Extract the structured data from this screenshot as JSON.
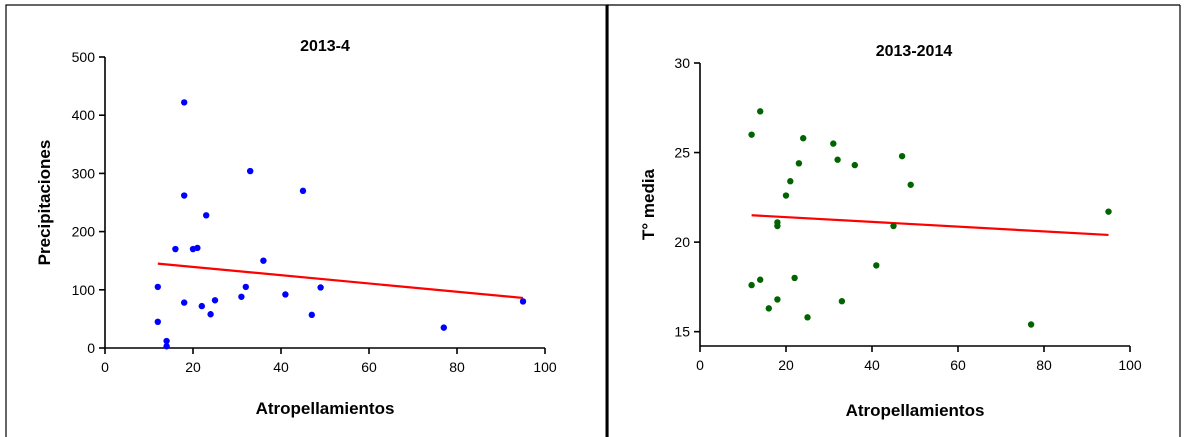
{
  "chart_data": [
    {
      "type": "scatter",
      "title": "2013-4",
      "xlabel": "Atropellamientos",
      "ylabel": "Precipitaciones",
      "xlim": [
        0,
        100
      ],
      "ylim": [
        0,
        500
      ],
      "xticks": [
        "0",
        "20",
        "40",
        "60",
        "80",
        "100"
      ],
      "yticks": [
        "0",
        "100",
        "200",
        "300",
        "400",
        "500"
      ],
      "grid": false,
      "point_color": "#0000ff",
      "line_color": "#ff0000",
      "points": [
        {
          "x": 12,
          "y": 105
        },
        {
          "x": 12,
          "y": 45
        },
        {
          "x": 14,
          "y": 12
        },
        {
          "x": 14,
          "y": 3
        },
        {
          "x": 16,
          "y": 170
        },
        {
          "x": 18,
          "y": 422
        },
        {
          "x": 18,
          "y": 262
        },
        {
          "x": 18,
          "y": 78
        },
        {
          "x": 20,
          "y": 170
        },
        {
          "x": 21,
          "y": 172
        },
        {
          "x": 22,
          "y": 72
        },
        {
          "x": 23,
          "y": 228
        },
        {
          "x": 24,
          "y": 58
        },
        {
          "x": 25,
          "y": 82
        },
        {
          "x": 31,
          "y": 88
        },
        {
          "x": 32,
          "y": 105
        },
        {
          "x": 33,
          "y": 304
        },
        {
          "x": 36,
          "y": 150
        },
        {
          "x": 41,
          "y": 92
        },
        {
          "x": 45,
          "y": 270
        },
        {
          "x": 47,
          "y": 57
        },
        {
          "x": 49,
          "y": 104
        },
        {
          "x": 77,
          "y": 35
        },
        {
          "x": 95,
          "y": 80
        }
      ],
      "trendline": {
        "x": [
          12,
          95
        ],
        "y": [
          145,
          86
        ]
      }
    },
    {
      "type": "scatter",
      "title": "2013-2014",
      "xlabel": "Atropellamientos",
      "ylabel": "T° media",
      "xlim": [
        0,
        100
      ],
      "ylim": [
        14.2,
        30
      ],
      "xticks": [
        "0",
        "20",
        "40",
        "60",
        "80",
        "100"
      ],
      "yticks": [
        "15",
        "20",
        "25",
        "30"
      ],
      "grid": false,
      "point_color": "#006400",
      "line_color": "#ff0000",
      "points": [
        {
          "x": 12,
          "y": 26.0
        },
        {
          "x": 12,
          "y": 17.6
        },
        {
          "x": 14,
          "y": 27.3
        },
        {
          "x": 14,
          "y": 17.9
        },
        {
          "x": 16,
          "y": 16.3
        },
        {
          "x": 18,
          "y": 21.1
        },
        {
          "x": 18,
          "y": 20.9
        },
        {
          "x": 18,
          "y": 16.8
        },
        {
          "x": 20,
          "y": 22.6
        },
        {
          "x": 21,
          "y": 23.4
        },
        {
          "x": 22,
          "y": 18.0
        },
        {
          "x": 23,
          "y": 24.4
        },
        {
          "x": 24,
          "y": 25.8
        },
        {
          "x": 25,
          "y": 15.8
        },
        {
          "x": 31,
          "y": 25.5
        },
        {
          "x": 32,
          "y": 24.6
        },
        {
          "x": 33,
          "y": 16.7
        },
        {
          "x": 36,
          "y": 24.3
        },
        {
          "x": 41,
          "y": 18.7
        },
        {
          "x": 45,
          "y": 20.9
        },
        {
          "x": 47,
          "y": 24.8
        },
        {
          "x": 49,
          "y": 23.2
        },
        {
          "x": 77,
          "y": 15.4
        },
        {
          "x": 95,
          "y": 21.7
        }
      ],
      "trendline": {
        "x": [
          12,
          95
        ],
        "y": [
          21.5,
          20.4
        ]
      }
    }
  ]
}
